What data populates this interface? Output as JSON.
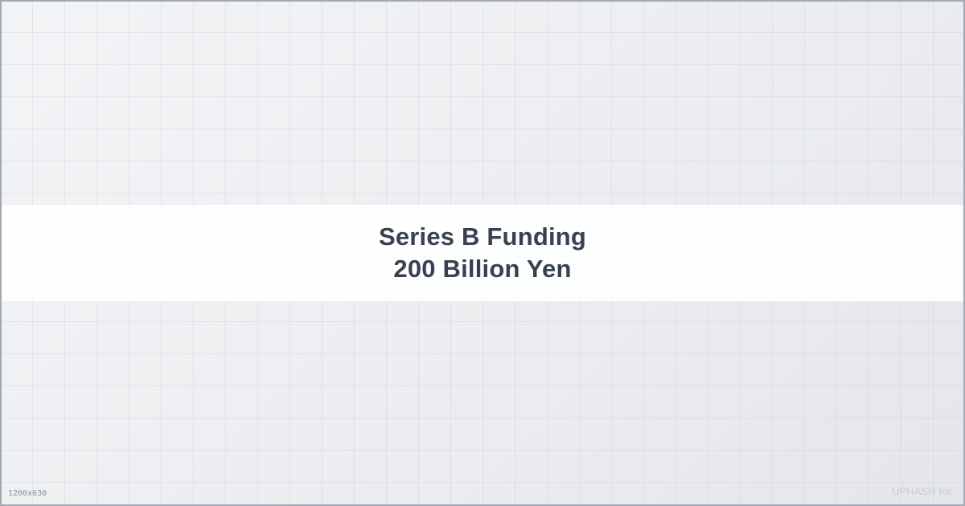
{
  "banner": {
    "line1": "Series B Funding",
    "line2": "200 Billion Yen"
  },
  "footer": {
    "dimensions": "1200x630",
    "brand": "UPHASH Inc."
  },
  "colors": {
    "text": "#374151",
    "border": "#a3a8b3",
    "grid": "#bec4d6",
    "background": "#eceef1",
    "banner": "#ffffff"
  }
}
